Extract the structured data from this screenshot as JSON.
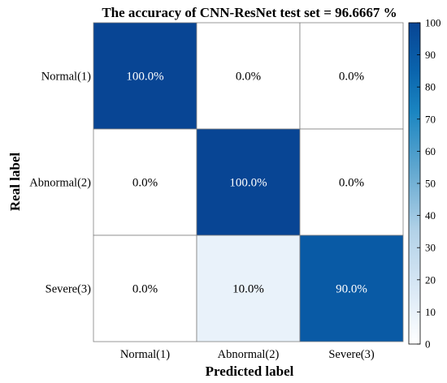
{
  "chart_data": {
    "type": "heatmap",
    "title": "The accuracy of CNN-ResNet test set = 96.6667 %",
    "xlabel": "Predicted label",
    "ylabel": "Real label",
    "x_categories": [
      "Normal(1)",
      "Abnormal(2)",
      "Severe(3)"
    ],
    "y_categories": [
      "Normal(1)",
      "Abnormal(2)",
      "Severe(3)"
    ],
    "values": [
      [
        100.0,
        0.0,
        0.0
      ],
      [
        0.0,
        100.0,
        0.0
      ],
      [
        0.0,
        10.0,
        90.0
      ]
    ],
    "cell_labels": [
      [
        "100.0%",
        "0.0%",
        "0.0%"
      ],
      [
        "0.0%",
        "100.0%",
        "0.0%"
      ],
      [
        "0.0%",
        "10.0%",
        "90.0%"
      ]
    ],
    "colorbar": {
      "range": [
        0,
        100
      ],
      "ticks": [
        0,
        10,
        20,
        30,
        40,
        50,
        60,
        70,
        80,
        90,
        100
      ],
      "colormap": "white-to-blue",
      "low_color": "#ffffff",
      "high_color": "#084594"
    }
  }
}
